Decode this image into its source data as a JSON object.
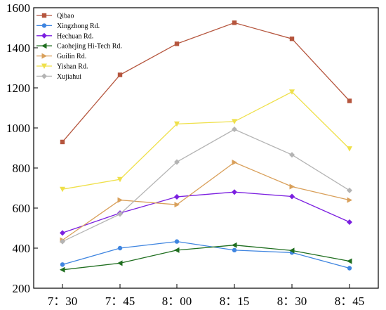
{
  "chart_data": {
    "type": "line",
    "title": "",
    "xlabel": "",
    "ylabel": "",
    "categories": [
      "7：30",
      "7：45",
      "8：00",
      "8：15",
      "8：30",
      "8：45"
    ],
    "ylim": [
      200,
      1600
    ],
    "yticks": [
      200,
      400,
      600,
      800,
      1000,
      1200,
      1400,
      1600
    ],
    "grid": false,
    "legend_position": "top-left",
    "series": [
      {
        "name": "Qibao",
        "color": "#b5553d",
        "marker": "square",
        "values": [
          930,
          1265,
          1420,
          1525,
          1445,
          1135
        ]
      },
      {
        "name": "Xingzhong Rd.",
        "color": "#3f85e0",
        "marker": "circle",
        "values": [
          318,
          400,
          433,
          390,
          378,
          300
        ]
      },
      {
        "name": "Hechuan Rd.",
        "color": "#7b1fe0",
        "marker": "diamond",
        "values": [
          476,
          575,
          656,
          680,
          658,
          530
        ]
      },
      {
        "name": "Caohejing Hi-Tech Rd.",
        "color": "#1f6e1f",
        "marker": "triangle-left",
        "values": [
          292,
          325,
          390,
          415,
          388,
          335
        ]
      },
      {
        "name": "Guilin Rd.",
        "color": "#d9a05b",
        "marker": "triangle-right",
        "values": [
          440,
          640,
          617,
          828,
          707,
          640
        ]
      },
      {
        "name": "Yishan Rd.",
        "color": "#efe04a",
        "marker": "triangle-down",
        "values": [
          694,
          743,
          1020,
          1032,
          1180,
          896
        ]
      },
      {
        "name": "Xujiahui",
        "color": "#b4b4b4",
        "marker": "diamond",
        "values": [
          433,
          570,
          830,
          993,
          866,
          688
        ]
      }
    ]
  }
}
